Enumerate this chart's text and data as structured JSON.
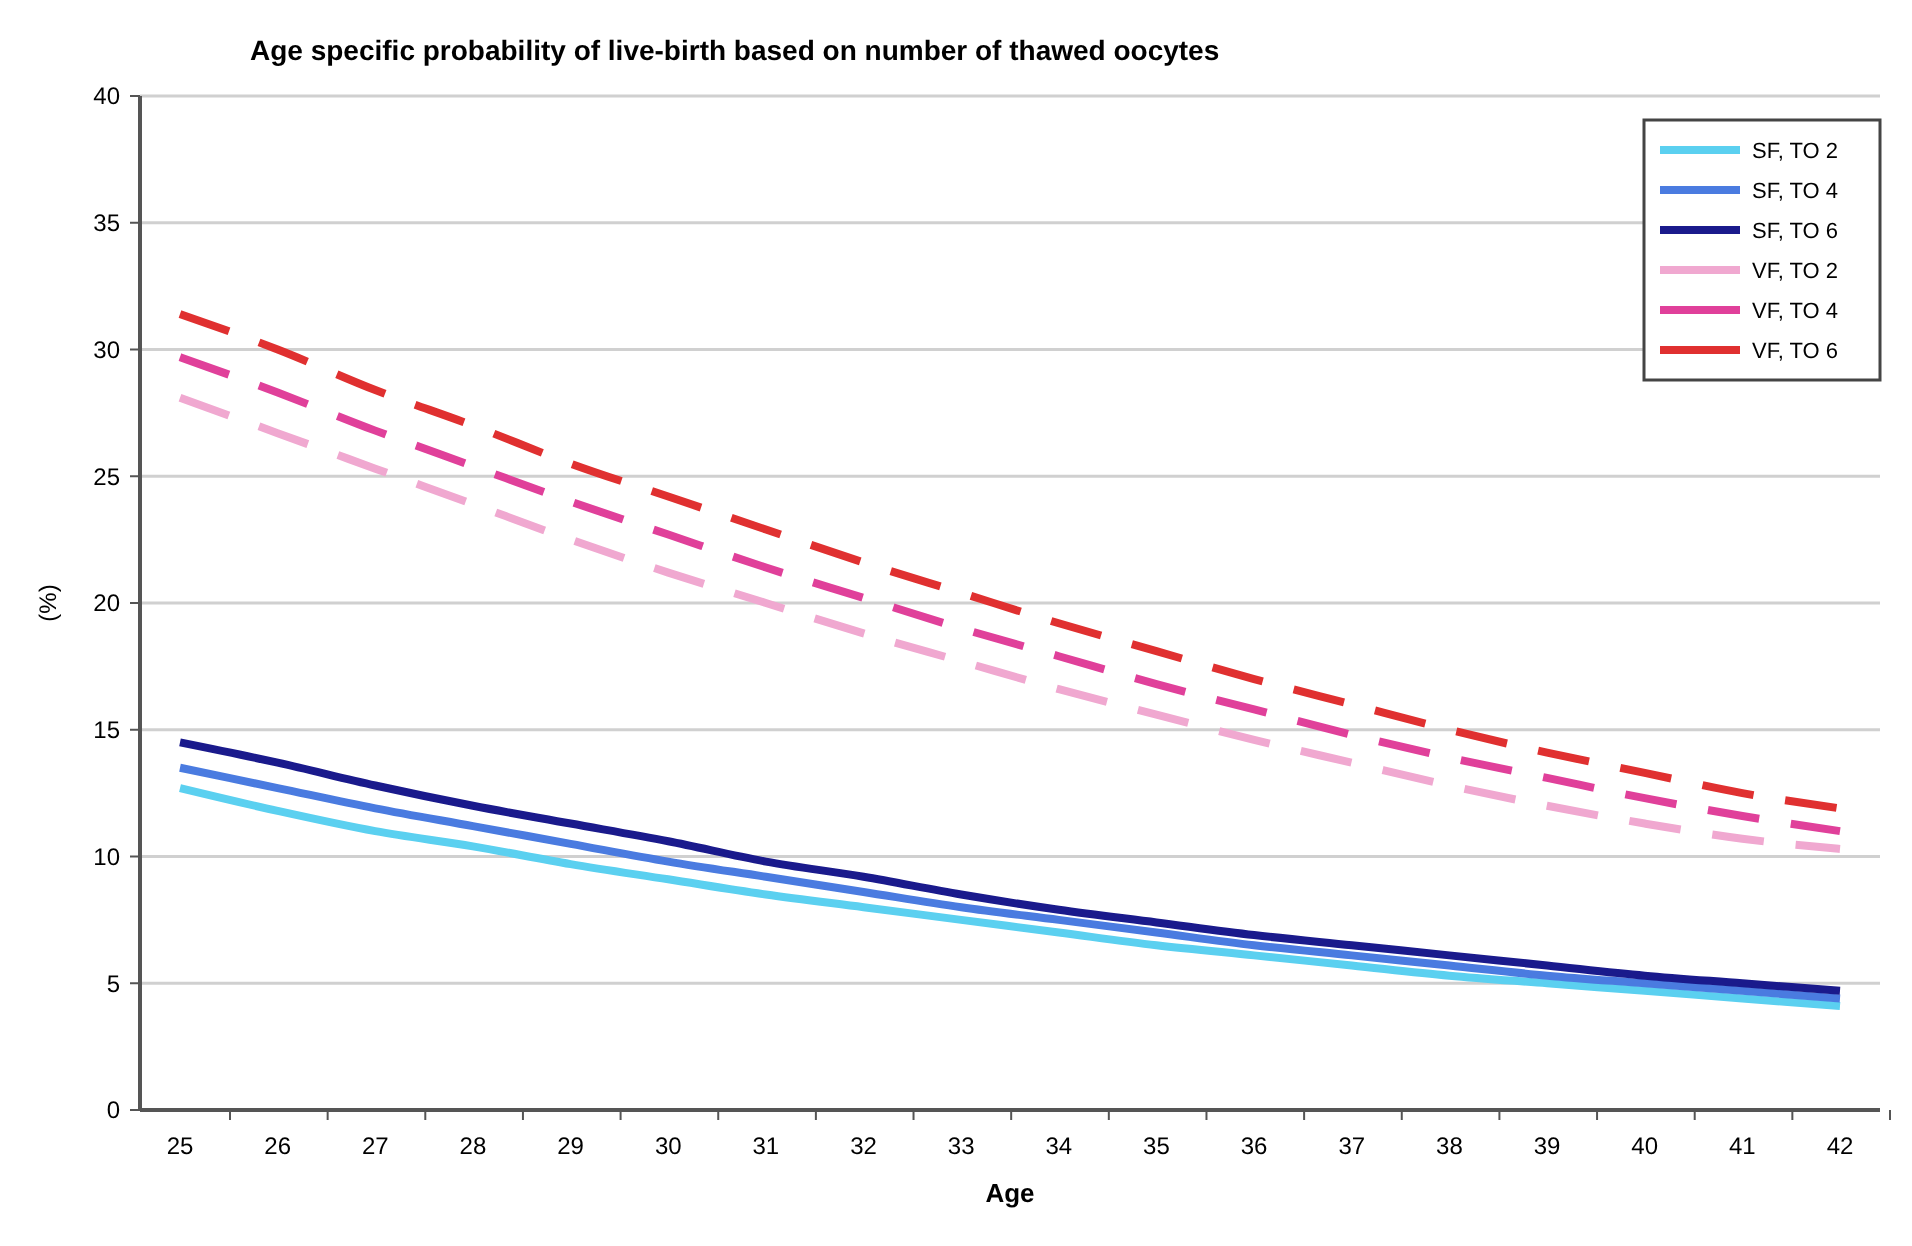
{
  "chart_data": {
    "type": "line",
    "title": "Age specific probability of live-birth based on number of thawed oocytes",
    "xlabel": "Age",
    "ylabel": "(%)",
    "categories": [
      "25",
      "26",
      "27",
      "28",
      "29",
      "30",
      "31",
      "32",
      "33",
      "34",
      "35",
      "36",
      "37",
      "38",
      "39",
      "40",
      "41",
      "42"
    ],
    "ylim": [
      0,
      40
    ],
    "yticks": [
      0,
      5,
      10,
      15,
      20,
      25,
      30,
      35,
      40
    ],
    "grid": "y",
    "legend": "top right",
    "marker": "none",
    "series": [
      {
        "name": "SF, TO 2",
        "color": "#5bd0f0",
        "line_style": "solid",
        "values": [
          12.7,
          11.8,
          11.0,
          10.4,
          9.7,
          9.1,
          8.5,
          8.0,
          7.5,
          7.0,
          6.5,
          6.1,
          5.7,
          5.3,
          5.0,
          4.7,
          4.4,
          4.1
        ]
      },
      {
        "name": "SF, TO 4",
        "color": "#4a7be0",
        "line_style": "solid",
        "values": [
          13.5,
          12.7,
          11.9,
          11.2,
          10.5,
          9.8,
          9.2,
          8.6,
          8.0,
          7.5,
          7.0,
          6.5,
          6.1,
          5.7,
          5.3,
          5.0,
          4.7,
          4.4
        ]
      },
      {
        "name": "SF, TO 6",
        "color": "#1a1a8c",
        "line_style": "solid",
        "values": [
          14.5,
          13.7,
          12.8,
          12.0,
          11.3,
          10.6,
          9.8,
          9.2,
          8.5,
          7.9,
          7.4,
          6.9,
          6.5,
          6.1,
          5.7,
          5.3,
          5.0,
          4.7
        ]
      },
      {
        "name": "VF, TO 2",
        "color": "#f0a8d0",
        "line_style": "dashed",
        "values": [
          28.1,
          26.7,
          25.3,
          23.9,
          22.5,
          21.2,
          20.0,
          18.8,
          17.7,
          16.6,
          15.6,
          14.6,
          13.7,
          12.8,
          12.0,
          11.3,
          10.7,
          10.3
        ]
      },
      {
        "name": "VF, TO 4",
        "color": "#e0409a",
        "line_style": "dashed",
        "values": [
          29.7,
          28.3,
          26.8,
          25.4,
          24.0,
          22.7,
          21.4,
          20.2,
          19.0,
          17.9,
          16.8,
          15.8,
          14.8,
          13.9,
          13.1,
          12.3,
          11.6,
          11.0
        ]
      },
      {
        "name": "VF, TO 6",
        "color": "#e03030",
        "line_style": "dashed",
        "values": [
          31.4,
          30.0,
          28.4,
          27.0,
          25.5,
          24.2,
          22.9,
          21.6,
          20.4,
          19.2,
          18.1,
          17.0,
          16.0,
          15.0,
          14.1,
          13.3,
          12.5,
          11.9
        ]
      }
    ]
  }
}
